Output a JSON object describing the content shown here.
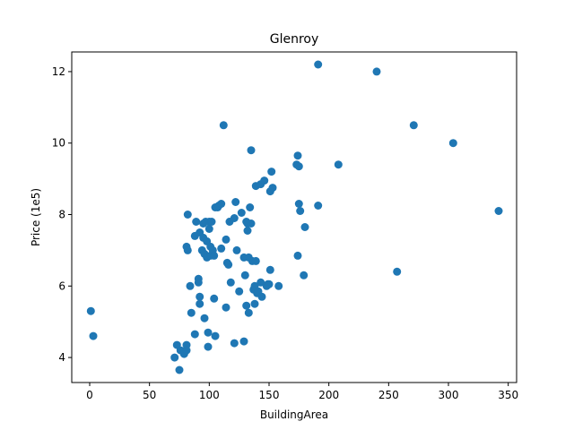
{
  "chart_data": {
    "type": "scatter",
    "title": "Glenroy",
    "xlabel": "BuildingArea",
    "ylabel": "Price (1e5)",
    "xlim": [
      -15,
      357
    ],
    "ylim": [
      3.3,
      12.55
    ],
    "xticks": [
      0,
      50,
      100,
      150,
      200,
      250,
      300,
      350
    ],
    "yticks": [
      4,
      6,
      8,
      10,
      12
    ],
    "grid": false,
    "color": "#1f77b4",
    "points": [
      [
        1,
        5.3
      ],
      [
        3,
        4.6
      ],
      [
        71,
        4.0
      ],
      [
        73,
        4.35
      ],
      [
        75,
        3.65
      ],
      [
        76,
        4.2
      ],
      [
        79,
        4.1
      ],
      [
        81,
        4.35
      ],
      [
        81,
        4.2
      ],
      [
        81,
        7.1
      ],
      [
        82,
        7.0
      ],
      [
        82,
        8.0
      ],
      [
        84,
        6.0
      ],
      [
        85,
        5.25
      ],
      [
        88,
        4.65
      ],
      [
        88,
        7.4
      ],
      [
        89,
        7.8
      ],
      [
        91,
        6.2
      ],
      [
        91,
        6.1
      ],
      [
        92,
        5.7
      ],
      [
        92,
        5.5
      ],
      [
        92,
        7.5
      ],
      [
        94,
        7.0
      ],
      [
        95,
        7.75
      ],
      [
        95,
        7.35
      ],
      [
        96,
        6.9
      ],
      [
        96,
        5.1
      ],
      [
        97,
        7.8
      ],
      [
        98,
        7.25
      ],
      [
        98,
        6.8
      ],
      [
        99,
        4.7
      ],
      [
        99,
        4.3
      ],
      [
        100,
        7.8
      ],
      [
        100,
        7.6
      ],
      [
        101,
        7.1
      ],
      [
        101,
        6.85
      ],
      [
        102,
        7.8
      ],
      [
        103,
        7.0
      ],
      [
        104,
        6.85
      ],
      [
        104,
        5.65
      ],
      [
        105,
        4.6
      ],
      [
        105,
        8.2
      ],
      [
        107,
        8.2
      ],
      [
        108,
        8.25
      ],
      [
        110,
        8.3
      ],
      [
        110,
        7.05
      ],
      [
        112,
        10.5
      ],
      [
        114,
        5.4
      ],
      [
        114,
        7.3
      ],
      [
        115,
        6.65
      ],
      [
        116,
        6.6
      ],
      [
        117,
        7.8
      ],
      [
        118,
        6.1
      ],
      [
        121,
        7.9
      ],
      [
        121,
        4.4
      ],
      [
        122,
        8.35
      ],
      [
        123,
        7.0
      ],
      [
        125,
        5.85
      ],
      [
        127,
        8.05
      ],
      [
        129,
        6.8
      ],
      [
        129,
        4.45
      ],
      [
        130,
        6.3
      ],
      [
        131,
        7.8
      ],
      [
        131,
        5.45
      ],
      [
        132,
        7.75
      ],
      [
        132,
        7.55
      ],
      [
        133,
        6.8
      ],
      [
        133,
        5.25
      ],
      [
        134,
        8.2
      ],
      [
        135,
        7.75
      ],
      [
        135,
        9.8
      ],
      [
        136,
        6.7
      ],
      [
        137,
        5.9
      ],
      [
        138,
        5.5
      ],
      [
        138,
        6.0
      ],
      [
        139,
        6.7
      ],
      [
        139,
        8.8
      ],
      [
        140,
        5.8
      ],
      [
        141,
        5.85
      ],
      [
        143,
        6.1
      ],
      [
        143,
        8.85
      ],
      [
        144,
        5.7
      ],
      [
        146,
        8.95
      ],
      [
        148,
        6.0
      ],
      [
        149,
        6.05
      ],
      [
        150,
        6.05
      ],
      [
        151,
        6.45
      ],
      [
        151,
        8.65
      ],
      [
        152,
        9.2
      ],
      [
        153,
        8.75
      ],
      [
        158,
        6.0
      ],
      [
        173,
        9.4
      ],
      [
        174,
        6.85
      ],
      [
        174,
        9.65
      ],
      [
        175,
        9.35
      ],
      [
        175,
        8.3
      ],
      [
        176,
        8.1
      ],
      [
        179,
        6.3
      ],
      [
        180,
        7.65
      ],
      [
        191,
        8.25
      ],
      [
        208,
        9.4
      ],
      [
        257,
        6.4
      ],
      [
        191,
        12.2
      ],
      [
        240,
        12.0
      ],
      [
        271,
        10.5
      ],
      [
        304,
        10.0
      ],
      [
        342,
        8.1
      ]
    ]
  }
}
